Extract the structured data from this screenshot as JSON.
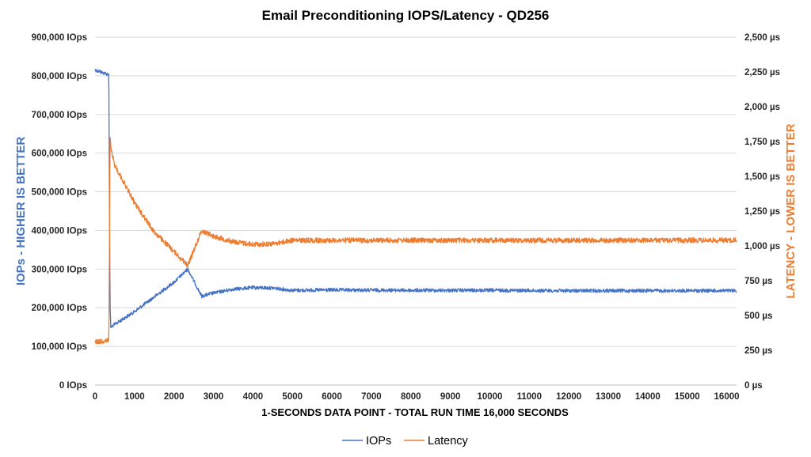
{
  "chart_data": {
    "type": "line",
    "title": "Email Preconditioning IOPS/Latency - QD256",
    "xlabel": "1-SECONDS DATA POINT - TOTAL RUN TIME 16,000 SECONDS",
    "ylabel_left": "IOPs - HIGHER IS BETTER",
    "ylabel_right": "LATENCY - LOWER IS BETTER",
    "xlim": [
      0,
      16250
    ],
    "ylim_left": [
      0,
      900000
    ],
    "ylim_right": [
      0,
      2500
    ],
    "x_ticks": [
      "0",
      "1000",
      "2000",
      "3000",
      "4000",
      "5000",
      "6000",
      "7000",
      "8000",
      "9000",
      "10000",
      "11000",
      "12000",
      "13000",
      "14000",
      "15000",
      "16000"
    ],
    "y_left_ticks": [
      "0 IOps",
      "100,000 IOps",
      "200,000 IOps",
      "300,000 IOps",
      "400,000 IOps",
      "500,000 IOps",
      "600,000 IOps",
      "700,000 IOps",
      "800,000 IOps",
      "900,000 IOps"
    ],
    "y_right_ticks": [
      "0 µs",
      "250 µs",
      "500 µs",
      "750 µs",
      "1,000 µs",
      "1,250 µs",
      "1,500 µs",
      "1,750 µs",
      "2,000 µs",
      "2,250 µs",
      "2,500 µs"
    ],
    "grid": "horizontal",
    "legend_position": "bottom",
    "series": [
      {
        "name": "IOPs",
        "axis": "left",
        "color": "#4472C4",
        "x": [
          0,
          100,
          200,
          300,
          350,
          370,
          380,
          400,
          500,
          1000,
          1500,
          2000,
          2350,
          2700,
          3000,
          3500,
          4000,
          4500,
          5000,
          6000,
          8000,
          10000,
          12000,
          14000,
          16000,
          16250
        ],
        "y": [
          815000,
          812000,
          808000,
          805000,
          803000,
          420000,
          210000,
          150000,
          157000,
          190000,
          228000,
          266000,
          300000,
          230000,
          238000,
          248000,
          252000,
          251000,
          245000,
          246000,
          245000,
          245000,
          244000,
          244000,
          244000,
          244000
        ]
      },
      {
        "name": "Latency",
        "axis": "right",
        "color": "#ED7D31",
        "x": [
          0,
          100,
          200,
          300,
          350,
          370,
          380,
          400,
          500,
          1000,
          1500,
          2000,
          2350,
          2700,
          3000,
          3500,
          4000,
          4500,
          5000,
          6000,
          8000,
          10000,
          12000,
          14000,
          16000,
          16250
        ],
        "y": [
          310,
          312,
          315,
          318,
          320,
          1150,
          1800,
          1700,
          1580,
          1310,
          1100,
          960,
          860,
          1110,
          1070,
          1030,
          1010,
          1015,
          1040,
          1040,
          1040,
          1040,
          1040,
          1040,
          1040,
          1040
        ]
      }
    ]
  }
}
